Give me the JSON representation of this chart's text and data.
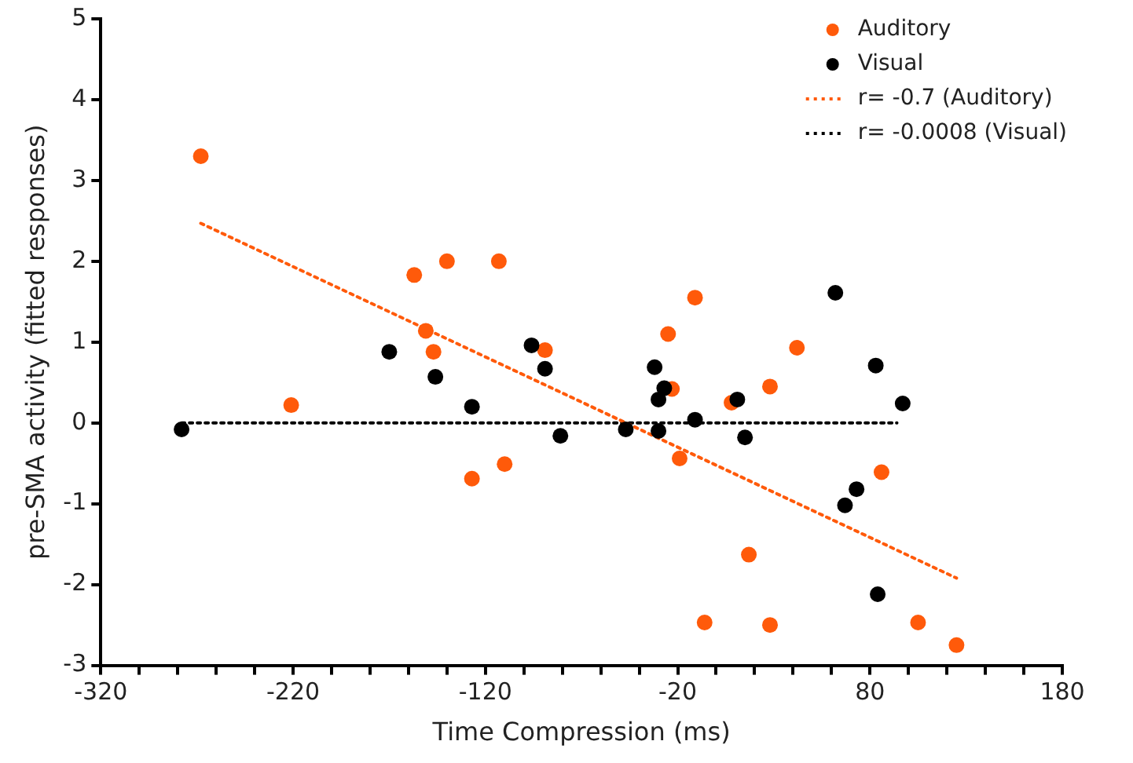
{
  "chart_data": {
    "type": "scatter",
    "xlabel": "Time Compression (ms)",
    "ylabel": "pre-SMA activity (fitted responses)",
    "xlim": [
      -320,
      180
    ],
    "xticks": [
      -320,
      {
        "value": -300,
        "label": null
      },
      {
        "value": -280,
        "label": null
      },
      {
        "value": -260,
        "label": null
      },
      {
        "value": -240,
        "label": null
      },
      -220,
      {
        "value": -200,
        "label": null
      },
      {
        "value": -180,
        "label": null
      },
      {
        "value": -160,
        "label": null
      },
      {
        "value": -140,
        "label": null
      },
      -120,
      {
        "value": -100,
        "label": null
      },
      {
        "value": -80,
        "label": null
      },
      {
        "value": -60,
        "label": null
      },
      {
        "value": -40,
        "label": null
      },
      -20,
      {
        "value": 0,
        "label": null
      },
      {
        "value": 20,
        "label": null
      },
      {
        "value": 40,
        "label": null
      },
      {
        "value": 60,
        "label": null
      },
      80,
      {
        "value": 100,
        "label": null
      },
      {
        "value": 120,
        "label": null
      },
      {
        "value": 140,
        "label": null
      },
      {
        "value": 160,
        "label": null
      },
      180
    ],
    "ylim": [
      -3,
      5
    ],
    "yticks": [
      -3,
      -2,
      -1,
      0,
      1,
      2,
      3,
      4,
      5
    ],
    "grid": false,
    "legend": "top right",
    "marker": "circle",
    "series": [
      {
        "name": "Auditory",
        "color": "#ff5a0a",
        "x": [
          -268,
          -221,
          -157,
          -151,
          -147,
          -140,
          -113,
          -89,
          -127,
          -110,
          -11,
          -25,
          -23,
          -19,
          8,
          28,
          42,
          17,
          -6,
          28,
          86,
          105,
          125
        ],
        "values": [
          3.3,
          0.22,
          1.83,
          1.14,
          0.88,
          2.0,
          2.0,
          0.9,
          -0.69,
          -0.51,
          1.55,
          1.1,
          0.42,
          -0.44,
          0.25,
          0.45,
          0.93,
          -1.63,
          -2.47,
          -2.5,
          -0.61,
          -2.47,
          -2.75
        ]
      },
      {
        "name": "Visual",
        "color": "#000000",
        "x": [
          -278,
          -170,
          -146,
          -127,
          -96,
          -89,
          -81,
          -47,
          -32,
          -30,
          -30,
          -27,
          -11,
          11,
          15,
          62,
          67,
          73,
          83,
          84,
          97
        ],
        "values": [
          -0.08,
          0.88,
          0.57,
          0.2,
          0.96,
          0.67,
          -0.16,
          -0.08,
          0.69,
          0.29,
          -0.1,
          0.43,
          0.04,
          0.29,
          -0.18,
          1.61,
          -1.02,
          -0.82,
          0.71,
          -2.12,
          0.24
        ]
      },
      {
        "name": "r= -0.7 (Auditory)",
        "type": "line",
        "color": "#ff5a0a",
        "line_style": "dotted",
        "marker": "none",
        "x": [
          -268,
          125
        ],
        "values": [
          2.47,
          -1.92
        ]
      },
      {
        "name": "r= -0.0008 (Visual)",
        "type": "line",
        "color": "#000000",
        "line_style": "dotted",
        "marker": "none",
        "x": [
          -278,
          94
        ],
        "values": [
          0,
          0
        ]
      }
    ]
  }
}
